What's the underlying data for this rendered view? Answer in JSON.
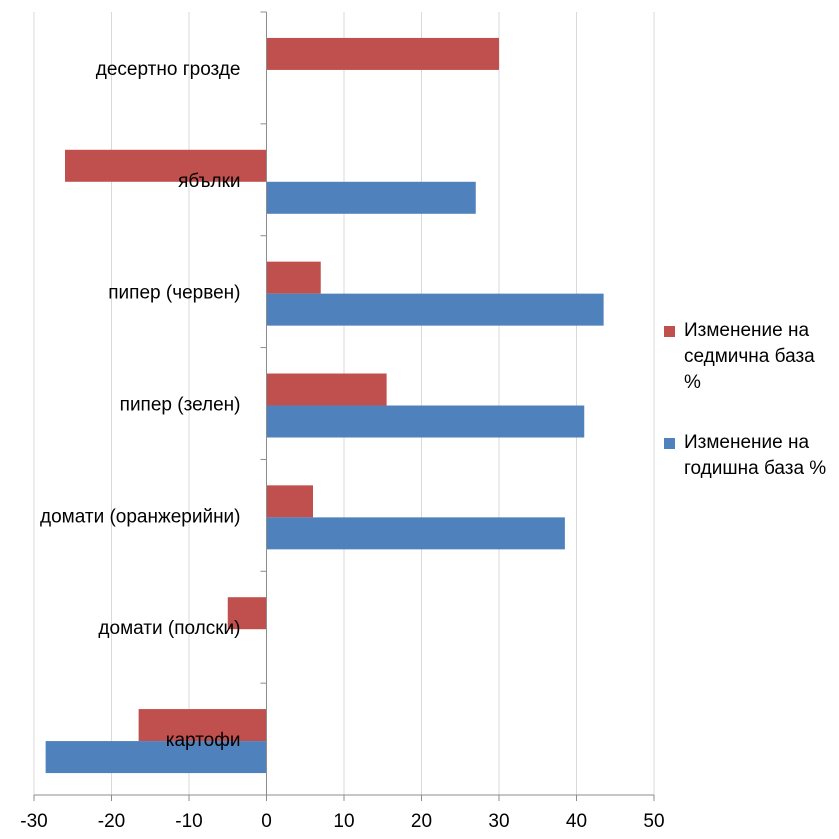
{
  "chart_data": {
    "type": "bar",
    "orientation": "horizontal",
    "categories": [
      "десертно грозде",
      "ябълки",
      "пипер (червен)",
      "пипер (зелен)",
      "домати (оранжерийни)",
      "домати (полски)",
      "картофи"
    ],
    "series": [
      {
        "name": "Изменение на седмична база %",
        "color": "#c0504d",
        "values": [
          30,
          -26,
          7,
          15.5,
          6,
          -5,
          -16.5
        ]
      },
      {
        "name": "Изменение на годишна база %",
        "color": "#4f81bd",
        "values": [
          null,
          27,
          43.5,
          41,
          38.5,
          null,
          -28.5
        ]
      }
    ],
    "xlim": [
      -30,
      50
    ],
    "xticks": [
      -30,
      -20,
      -10,
      0,
      10,
      20,
      30,
      40,
      50
    ],
    "grid": true,
    "legend_position": "right"
  }
}
